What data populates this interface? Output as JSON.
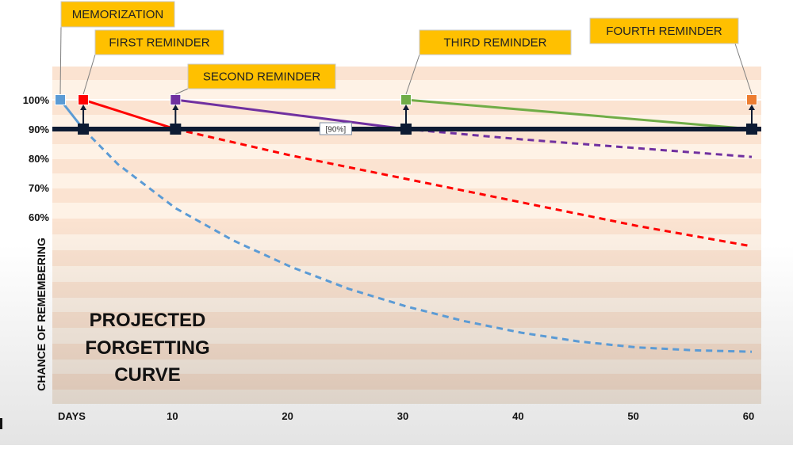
{
  "chart_data": {
    "type": "line",
    "title": "PROJECTED FORGETTING CURVE",
    "title_lines": [
      "PROJECTED",
      "FORGETTING",
      "CURVE"
    ],
    "xlabel": "DAYS",
    "ylabel": "CHANCE OF REMEMBERING",
    "x_ticks": [
      10,
      20,
      30,
      40,
      50,
      60
    ],
    "y_ticks": [
      {
        "value": 100,
        "label": "100%"
      },
      {
        "value": 90,
        "label": "90%"
      },
      {
        "value": 80,
        "label": "80%"
      },
      {
        "value": 70,
        "label": "70%"
      },
      {
        "value": 60,
        "label": "60%"
      }
    ],
    "threshold": {
      "value": 90,
      "label": "[90%]"
    },
    "callouts": [
      {
        "label": "MEMORIZATION",
        "day": 0,
        "value": 100
      },
      {
        "label": "FIRST REMINDER",
        "day": 2,
        "value": 100
      },
      {
        "label": "SECOND REMINDER",
        "day": 10,
        "value": 100
      },
      {
        "label": "THIRD REMINDER",
        "day": 30,
        "value": 100
      },
      {
        "label": "FOURTH REMINDER",
        "day": 60,
        "value": 100
      }
    ],
    "reminder_days": [
      2,
      10,
      30,
      60
    ],
    "series": [
      {
        "color": "#5b9bd5",
        "solid": [
          [
            0,
            100
          ],
          [
            2,
            90
          ]
        ],
        "dashed": [
          [
            2,
            90
          ],
          [
            5,
            78
          ],
          [
            10,
            63
          ],
          [
            15,
            52
          ],
          [
            20,
            43
          ],
          [
            25,
            35.5
          ],
          [
            30,
            29.5
          ],
          [
            35,
            24.5
          ],
          [
            40,
            20.5
          ],
          [
            45,
            17.5
          ],
          [
            50,
            15.5
          ],
          [
            55,
            14.5
          ],
          [
            60,
            14
          ]
        ]
      },
      {
        "color": "#ff0000",
        "solid": [
          [
            2,
            100
          ],
          [
            10,
            90
          ]
        ],
        "dashed": [
          [
            10,
            90
          ],
          [
            20,
            81
          ],
          [
            30,
            73
          ],
          [
            40,
            65
          ],
          [
            50,
            57
          ],
          [
            60,
            50
          ]
        ]
      },
      {
        "color": "#7030a0",
        "solid": [
          [
            10,
            100
          ],
          [
            30,
            90
          ]
        ],
        "dashed": [
          [
            30,
            90
          ],
          [
            40,
            86.5
          ],
          [
            50,
            83.5
          ],
          [
            60,
            80.5
          ]
        ]
      },
      {
        "color": "#70ad47",
        "solid": [
          [
            30,
            100
          ],
          [
            60,
            90
          ]
        ],
        "dashed": []
      }
    ],
    "marker_colors": [
      "#5b9bd5",
      "#ff0000",
      "#7030a0",
      "#70ad47",
      "#ed7d31"
    ],
    "threshold_color": "#0d1b33",
    "callout_color": "#ffc000"
  }
}
